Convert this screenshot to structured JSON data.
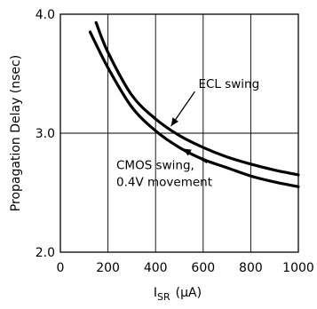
{
  "chart_data": {
    "type": "line",
    "title": "",
    "xlabel": "I",
    "xlabel_subscript": "SR",
    "xlabel_unit": "(μA)",
    "ylabel": "Propagation Delay (nsec)",
    "xlim": [
      0,
      1000
    ],
    "ylim": [
      2.0,
      4.0
    ],
    "xticks": [
      0,
      200,
      400,
      600,
      800,
      1000
    ],
    "xtick_labels": [
      "0",
      "200",
      "400",
      "600",
      "800",
      "1000"
    ],
    "yticks": [
      2.0,
      3.0,
      4.0
    ],
    "ytick_labels": [
      "2.0",
      "3.0",
      "4.0"
    ],
    "grid": true,
    "series": [
      {
        "name": "ECL swing",
        "x": [
          150,
          200,
          300,
          400,
          500,
          600,
          700,
          800,
          900,
          1000
        ],
        "y": [
          3.93,
          3.68,
          3.32,
          3.12,
          2.98,
          2.88,
          2.8,
          2.74,
          2.69,
          2.65
        ]
      },
      {
        "name": "CMOS swing, 0.4V movement",
        "x": [
          125,
          200,
          300,
          400,
          500,
          600,
          700,
          800,
          900,
          1000
        ],
        "y": [
          3.85,
          3.55,
          3.22,
          3.02,
          2.88,
          2.78,
          2.71,
          2.64,
          2.59,
          2.55
        ]
      }
    ],
    "annotations": [
      {
        "text": "ECL swing",
        "x": 580,
        "y": 3.38,
        "arrow_to": [
          465,
          3.06
        ]
      },
      {
        "text_lines": [
          "CMOS swing,",
          "0.4V movement"
        ],
        "x": 250,
        "y": 2.75,
        "arrow_to": [
          515,
          2.87
        ]
      }
    ]
  }
}
